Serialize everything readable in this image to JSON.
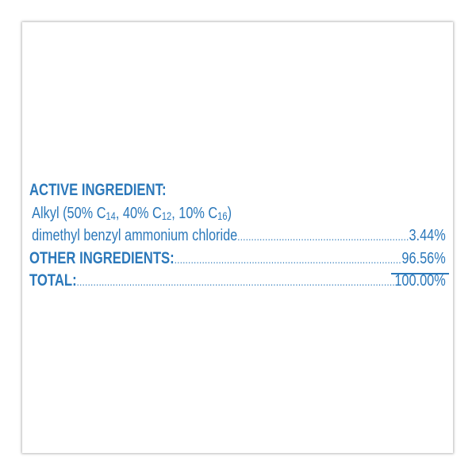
{
  "colors": {
    "text": "#2b78ba",
    "background": "#ffffff"
  },
  "label": {
    "active_heading": "ACTIVE INGREDIENT:",
    "active_line1": {
      "prefix": "Alkyl (50% C",
      "sub1": "14",
      "mid1": ", 40% C",
      "sub2": "12",
      "mid2": ", 10% C",
      "sub3": "16",
      "suffix": ")"
    },
    "active_line2": "dimethyl benzyl ammonium chloride",
    "active_value": "3.44%",
    "other_label": "OTHER INGREDIENTS:",
    "other_value": "96.56%",
    "total_label": "TOTAL:",
    "total_value": "100.00%"
  }
}
